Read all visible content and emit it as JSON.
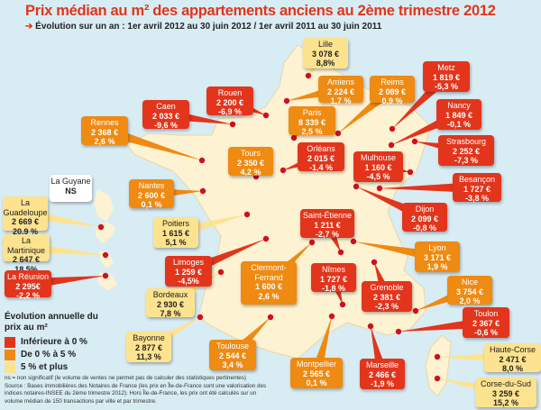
{
  "title": "Prix médian au m² des appartements anciens au 2ème trimestre 2012",
  "subtitle": "Évolution sur un an : 1er avril 2012 au 30 juin 2012 / 1er avril 2011 au 30 juin 2011",
  "colors": {
    "red": "#e2351c",
    "orange": "#ef8a12",
    "yellow": "#fde38f",
    "sea": "#d8ecf3",
    "land": "#fdf2d2"
  },
  "cities": [
    {
      "name": "Lille",
      "price": "3 078 €",
      "change": "8,8%",
      "cat": "yellow"
    },
    {
      "name": "Amiens",
      "price": "2 224 €",
      "change": "1,7 %",
      "cat": "orange"
    },
    {
      "name": "Reims",
      "price": "2 089 €",
      "change": "0,9 %",
      "cat": "orange"
    },
    {
      "name": "Paris",
      "price": "8 339 €",
      "change": "2,5 %",
      "cat": "orange"
    },
    {
      "name": "Metz",
      "price": "1 819 €",
      "change": "-5,3 %",
      "cat": "red"
    },
    {
      "name": "Nancy",
      "price": "1 849 €",
      "change": "-0,1 %",
      "cat": "red"
    },
    {
      "name": "Strasbourg",
      "price": "2 252 €",
      "change": "-7,3 %",
      "cat": "red"
    },
    {
      "name": "Orléans",
      "price": "2 015 €",
      "change": "-1,4 %",
      "cat": "red"
    },
    {
      "name": "Mulhouse",
      "price": "1 160 €",
      "change": "-4,5 %",
      "cat": "red"
    },
    {
      "name": "Rouen",
      "price": "2 200 €",
      "change": "-6,9 %",
      "cat": "red"
    },
    {
      "name": "Caen",
      "price": "2 033 €",
      "change": "-9,6 %",
      "cat": "red"
    },
    {
      "name": "Rennes",
      "price": "2 368 €",
      "change": "2,6 %",
      "cat": "orange"
    },
    {
      "name": "Tours",
      "price": "2 350 €",
      "change": "4,2 %",
      "cat": "orange"
    },
    {
      "name": "Nantes",
      "price": "2 600 €",
      "change": "0,1 %",
      "cat": "orange"
    },
    {
      "name": "Besançon",
      "price": "1 727 €",
      "change": "-3,8 %",
      "cat": "red"
    },
    {
      "name": "Dijon",
      "price": "2 099 €",
      "change": "-0,8 %",
      "cat": "red"
    },
    {
      "name": "Poitiers",
      "price": "1 615 €",
      "change": "5,1 %",
      "cat": "yellow"
    },
    {
      "name": "Saint-Étienne",
      "price": "1 211 €",
      "change": "-2,7 %",
      "cat": "red"
    },
    {
      "name": "Limoges",
      "price": "1 259 €",
      "change": "-4,5%",
      "cat": "red"
    },
    {
      "name": "Clermont-Ferrand",
      "price": "1 600 €",
      "change": "2,6 %",
      "cat": "orange"
    },
    {
      "name": "Lyon",
      "price": "3 171 €",
      "change": "1,9 %",
      "cat": "orange"
    },
    {
      "name": "Nîmes",
      "price": "1 727 €",
      "change": "-1,8 %",
      "cat": "red"
    },
    {
      "name": "Grenoble",
      "price": "2 381 €",
      "change": "-2,3 %",
      "cat": "red"
    },
    {
      "name": "Nice",
      "price": "3 754 €",
      "change": "2,0 %",
      "cat": "orange"
    },
    {
      "name": "Toulon",
      "price": "2 367 €",
      "change": "-0,6 %",
      "cat": "red"
    },
    {
      "name": "Bordeaux",
      "price": "2 930 €",
      "change": "7,8 %",
      "cat": "yellow"
    },
    {
      "name": "Bayonne",
      "price": "2 877 €",
      "change": "11,3 %",
      "cat": "yellow"
    },
    {
      "name": "Toulouse",
      "price": "2 544 €",
      "change": "3,4 %",
      "cat": "orange"
    },
    {
      "name": "Montpellier",
      "price": "2 565 €",
      "change": "0,1 %",
      "cat": "orange"
    },
    {
      "name": "Marseille",
      "price": "2 466 €",
      "change": "-1,9 %",
      "cat": "red"
    },
    {
      "name": "Haute-Corse",
      "price": "2 471 €",
      "change": "8,0 %",
      "cat": "yellow"
    },
    {
      "name": "Corse-du-Sud",
      "price": "3 259 €",
      "change": "15,2 %",
      "cat": "yellow"
    },
    {
      "name": "La Guyane",
      "price": "NS",
      "change": "",
      "cat": "white"
    },
    {
      "name": "La Guadeloupe",
      "price": "2 669 €",
      "change": "20,9 %",
      "cat": "yellow"
    },
    {
      "name": "La Martinique",
      "price": "2 647 €",
      "change": "18,5%",
      "cat": "yellow"
    },
    {
      "name": "La Réunion",
      "price": "2 295€",
      "change": "-2,2 %",
      "cat": "red"
    }
  ],
  "legend": {
    "title": "Évolution annuelle du prix au m²",
    "items": [
      {
        "label": "Inférieure à 0 %",
        "cat": "red"
      },
      {
        "label": "De 0 % à 5 %",
        "cat": "orange"
      },
      {
        "label": "5 % et plus",
        "cat": "yellow"
      }
    ]
  },
  "footnote": [
    "ns = non significatif (le volume de ventes ne permet pas de calculer des statistiques pertinentes)",
    "Source : Bases immobilières des Notaires de France (les prix en Île-de-France sont une valorisation des indices notaires-INSEE du 2ème trimestre 2012). Hors Île-de-France, les prix ont été calculés sur un volume médian de 150 transactions par ville et par trimestre."
  ]
}
